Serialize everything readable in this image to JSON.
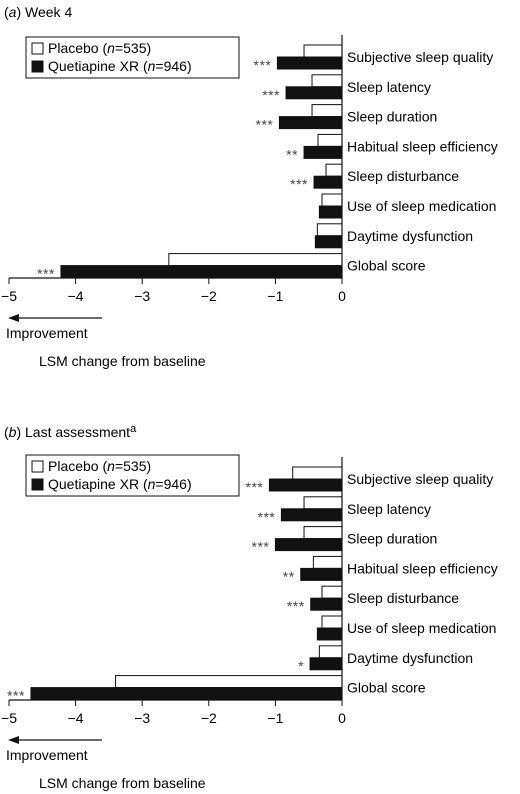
{
  "chart_data": [
    {
      "type": "bar",
      "panel_label": "a",
      "title": "Week 4",
      "xlabel": "LSM change from baseline",
      "direction_label": "Improvement",
      "xlim": [
        -5,
        0
      ],
      "xticks": [
        "−5",
        "−4",
        "−3",
        "−2",
        "−1",
        "0"
      ],
      "categories": [
        "Subjective sleep quality",
        "Sleep latency",
        "Sleep duration",
        "Habitual sleep efficiency",
        "Sleep disturbance",
        "Use of sleep medication",
        "Daytime dysfunction",
        "Global score"
      ],
      "series": [
        {
          "name": "Placebo",
          "n_label": "n=535",
          "values": [
            -0.57,
            -0.45,
            -0.45,
            -0.36,
            -0.24,
            -0.3,
            -0.37,
            -2.6
          ]
        },
        {
          "name": "Quetiapine XR",
          "n_label": "n=946",
          "values": [
            -0.97,
            -0.84,
            -0.94,
            -0.57,
            -0.42,
            -0.34,
            -0.4,
            -4.22
          ]
        }
      ],
      "significance": [
        "***",
        "***",
        "***",
        "**",
        "***",
        "",
        "",
        "***"
      ],
      "legend_position": "top-left"
    },
    {
      "type": "bar",
      "panel_label": "b",
      "title": "Last assessment",
      "title_superscript": "a",
      "xlabel": "LSM change from baseline",
      "direction_label": "Improvement",
      "xlim": [
        -5,
        0
      ],
      "xticks": [
        "−5",
        "−4",
        "−3",
        "−2",
        "−1",
        "0"
      ],
      "categories": [
        "Subjective sleep quality",
        "Sleep latency",
        "Sleep duration",
        "Habitual sleep efficiency",
        "Sleep disturbance",
        "Use of sleep medication",
        "Daytime dysfunction",
        "Global score"
      ],
      "series": [
        {
          "name": "Placebo",
          "n_label": "n=535",
          "values": [
            -0.74,
            -0.57,
            -0.57,
            -0.43,
            -0.3,
            -0.3,
            -0.34,
            -3.4
          ]
        },
        {
          "name": "Quetiapine XR",
          "n_label": "n=946",
          "values": [
            -1.09,
            -0.91,
            -1.0,
            -0.62,
            -0.47,
            -0.37,
            -0.48,
            -4.67
          ]
        }
      ],
      "significance": [
        "***",
        "***",
        "***",
        "**",
        "***",
        "",
        "*",
        "***"
      ],
      "legend_position": "top-left"
    }
  ],
  "colors": {
    "placebo": "#ffffff",
    "quetiapine": "#111111",
    "stroke": "#111111",
    "stars": "#444444"
  }
}
